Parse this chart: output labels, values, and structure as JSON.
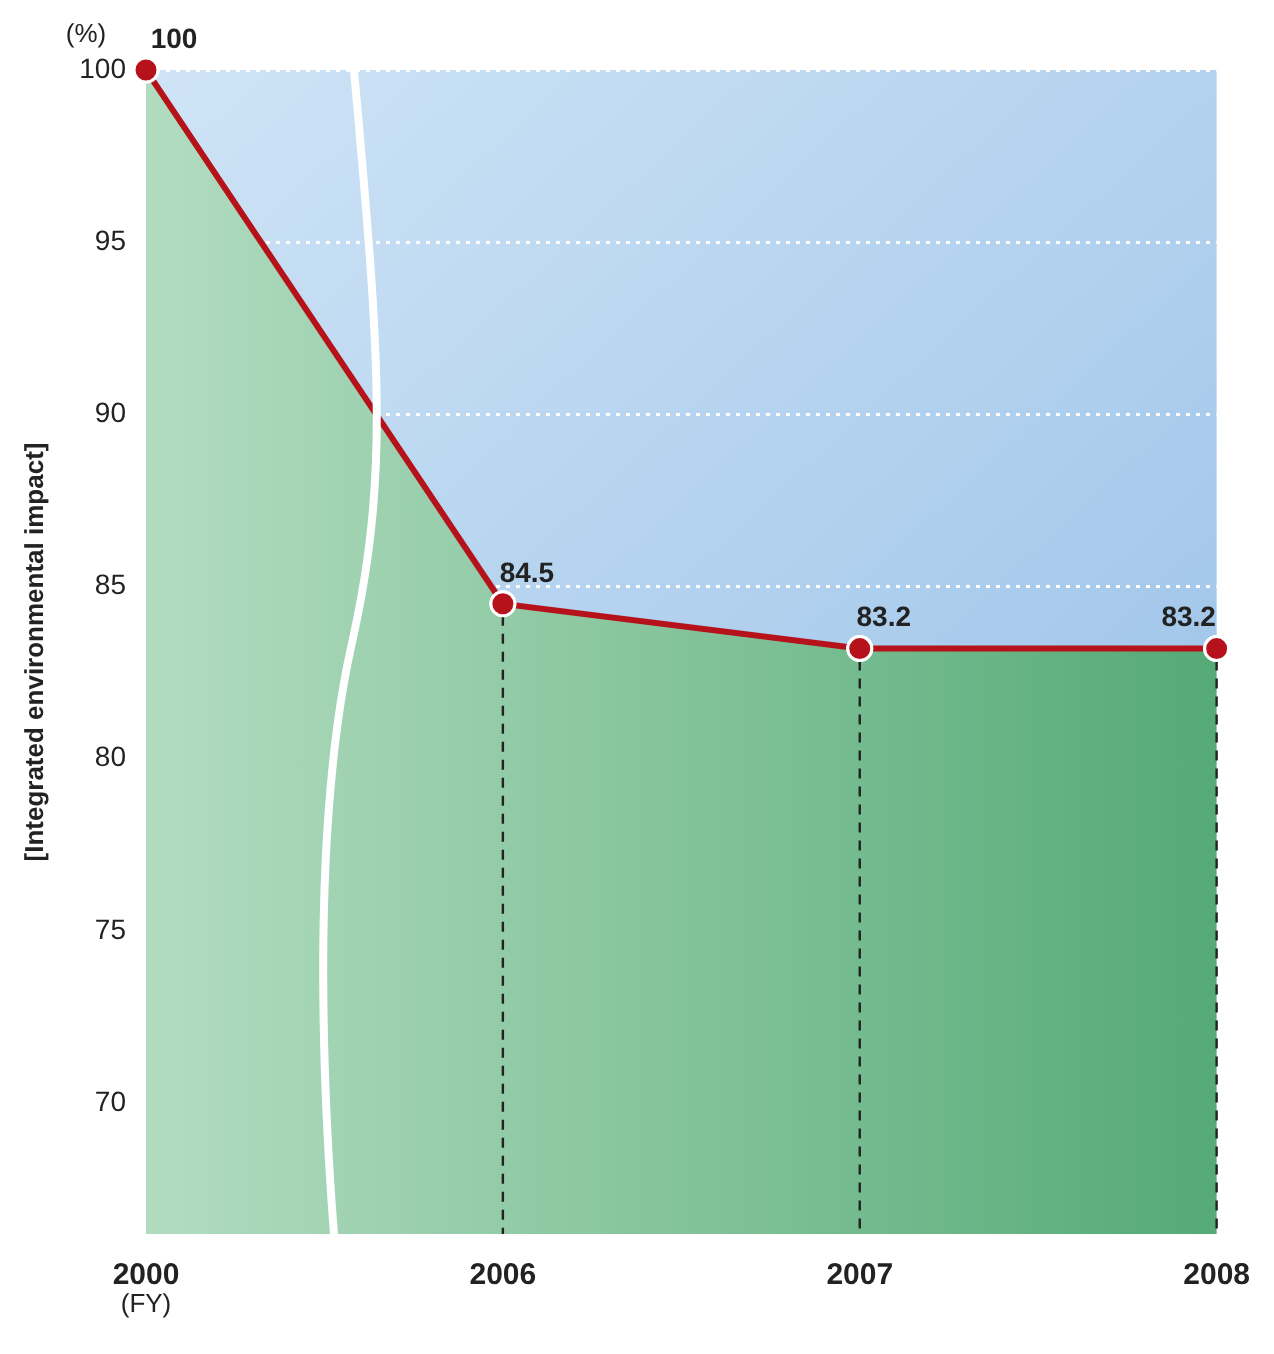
{
  "chart_data": {
    "type": "area",
    "ylabel": "[Integrated environmental impact]",
    "categories": [
      "2000",
      "2006",
      "2007",
      "2008"
    ],
    "series": [
      {
        "color": "#b5121b",
        "values": [
          100,
          84.5,
          83.2,
          83.2
        ]
      }
    ],
    "ylim": [
      66.2,
      100
    ],
    "yticks": [
      70,
      75,
      80,
      85,
      90,
      95,
      100
    ],
    "grid": "y",
    "legend": false,
    "marker": "circle",
    "data_labels": true,
    "annotations": [
      "(%)",
      "(FY)"
    ]
  }
}
